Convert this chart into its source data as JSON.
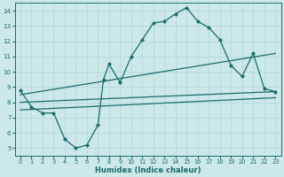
{
  "title": "",
  "xlabel": "Humidex (Indice chaleur)",
  "ylabel": "",
  "bg_color": "#cce8e8",
  "line_color": "#1a6b6b",
  "grid_color": "#b0d8d8",
  "xlim": [
    -0.5,
    23.5
  ],
  "ylim": [
    4.5,
    14.5
  ],
  "xticks": [
    0,
    1,
    2,
    3,
    4,
    5,
    6,
    7,
    8,
    9,
    10,
    11,
    12,
    13,
    14,
    15,
    16,
    17,
    18,
    19,
    20,
    21,
    22,
    23
  ],
  "yticks": [
    5,
    6,
    7,
    8,
    9,
    10,
    11,
    12,
    13,
    14
  ],
  "line1_x": [
    0,
    1,
    2,
    3,
    4,
    5,
    6,
    7,
    7.5,
    8,
    9,
    10,
    11,
    12,
    13,
    14,
    15,
    16,
    17,
    18,
    19,
    20,
    21,
    22,
    23
  ],
  "line1_y": [
    8.8,
    7.7,
    7.3,
    7.3,
    5.6,
    5.0,
    5.2,
    6.5,
    9.5,
    10.5,
    9.3,
    11.0,
    12.1,
    13.2,
    13.3,
    13.8,
    14.2,
    13.3,
    12.9,
    12.1,
    10.4,
    9.7,
    11.2,
    8.9,
    8.7
  ],
  "line2_x": [
    0,
    23
  ],
  "line2_y": [
    8.5,
    11.2
  ],
  "line3_x": [
    0,
    23
  ],
  "line3_y": [
    8.0,
    8.7
  ],
  "line4_x": [
    0,
    23
  ],
  "line4_y": [
    7.5,
    8.3
  ]
}
